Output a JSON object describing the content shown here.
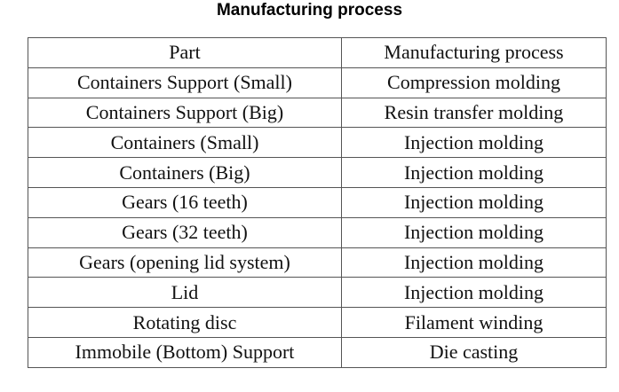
{
  "title": "Manufacturing process",
  "table": {
    "header": [
      "Part",
      "Manufacturing process"
    ],
    "rows": [
      [
        "Containers Support (Small)",
        "Compression molding"
      ],
      [
        "Containers Support (Big)",
        "Resin transfer molding"
      ],
      [
        "Containers (Small)",
        "Injection molding"
      ],
      [
        "Containers (Big)",
        "Injection molding"
      ],
      [
        "Gears (16 teeth)",
        "Injection molding"
      ],
      [
        "Gears (32 teeth)",
        "Injection molding"
      ],
      [
        "Gears (opening lid system)",
        "Injection molding"
      ],
      [
        "Lid",
        "Injection molding"
      ],
      [
        "Rotating disc",
        "Filament winding"
      ],
      [
        "Immobile (Bottom) Support",
        "Die casting"
      ]
    ]
  }
}
